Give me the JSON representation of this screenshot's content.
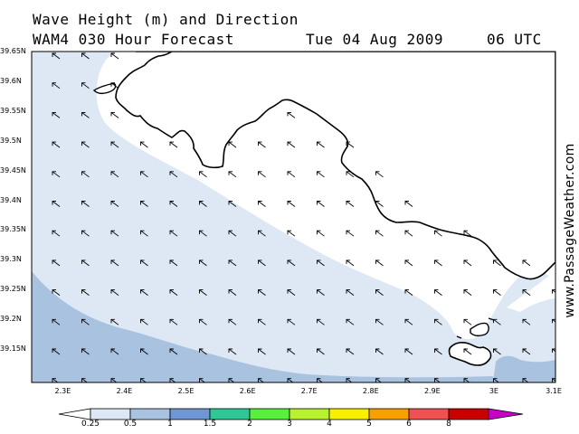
{
  "title": {
    "line1": "Wave Height (m) and Direction",
    "model": "WAM4 030 Hour Forecast",
    "date": "Tue 04 Aug 2009",
    "time": "06 UTC"
  },
  "watermark": "www.PassageWeather.com",
  "axes": {
    "lat_labels": [
      "39.65N",
      "39.6N",
      "39.55N",
      "39.5N",
      "39.45N",
      "39.4N",
      "39.35N",
      "39.3N",
      "39.25N",
      "39.2N",
      "39.15N"
    ],
    "lat_values": [
      39.65,
      39.6,
      39.55,
      39.5,
      39.45,
      39.4,
      39.35,
      39.3,
      39.25,
      39.2,
      39.15
    ],
    "lon_labels": [
      "2.3E",
      "2.4E",
      "2.5E",
      "2.6E",
      "2.7E",
      "2.8E",
      "2.9E",
      "3E",
      "3.1E"
    ],
    "lon_values": [
      2.3,
      2.4,
      2.5,
      2.6,
      2.7,
      2.8,
      2.9,
      3.0,
      3.1
    ]
  },
  "legend": {
    "labels": [
      "0.25",
      "0.5",
      "1",
      "1.5",
      "2",
      "3",
      "4",
      "5",
      "6",
      "8"
    ],
    "colors": [
      "#ffffff",
      "#dde8f4",
      "#a9c2e0",
      "#6f97d4",
      "#2ec796",
      "#58f03c",
      "#b8f032",
      "#f8f000",
      "#f8a000",
      "#f05050",
      "#c80000",
      "#c800c8"
    ]
  },
  "colors": {
    "land": "#ffffff",
    "sea_low": "#dde8f4",
    "sea_mid": "#a9c2e0",
    "coast": "#000000"
  }
}
